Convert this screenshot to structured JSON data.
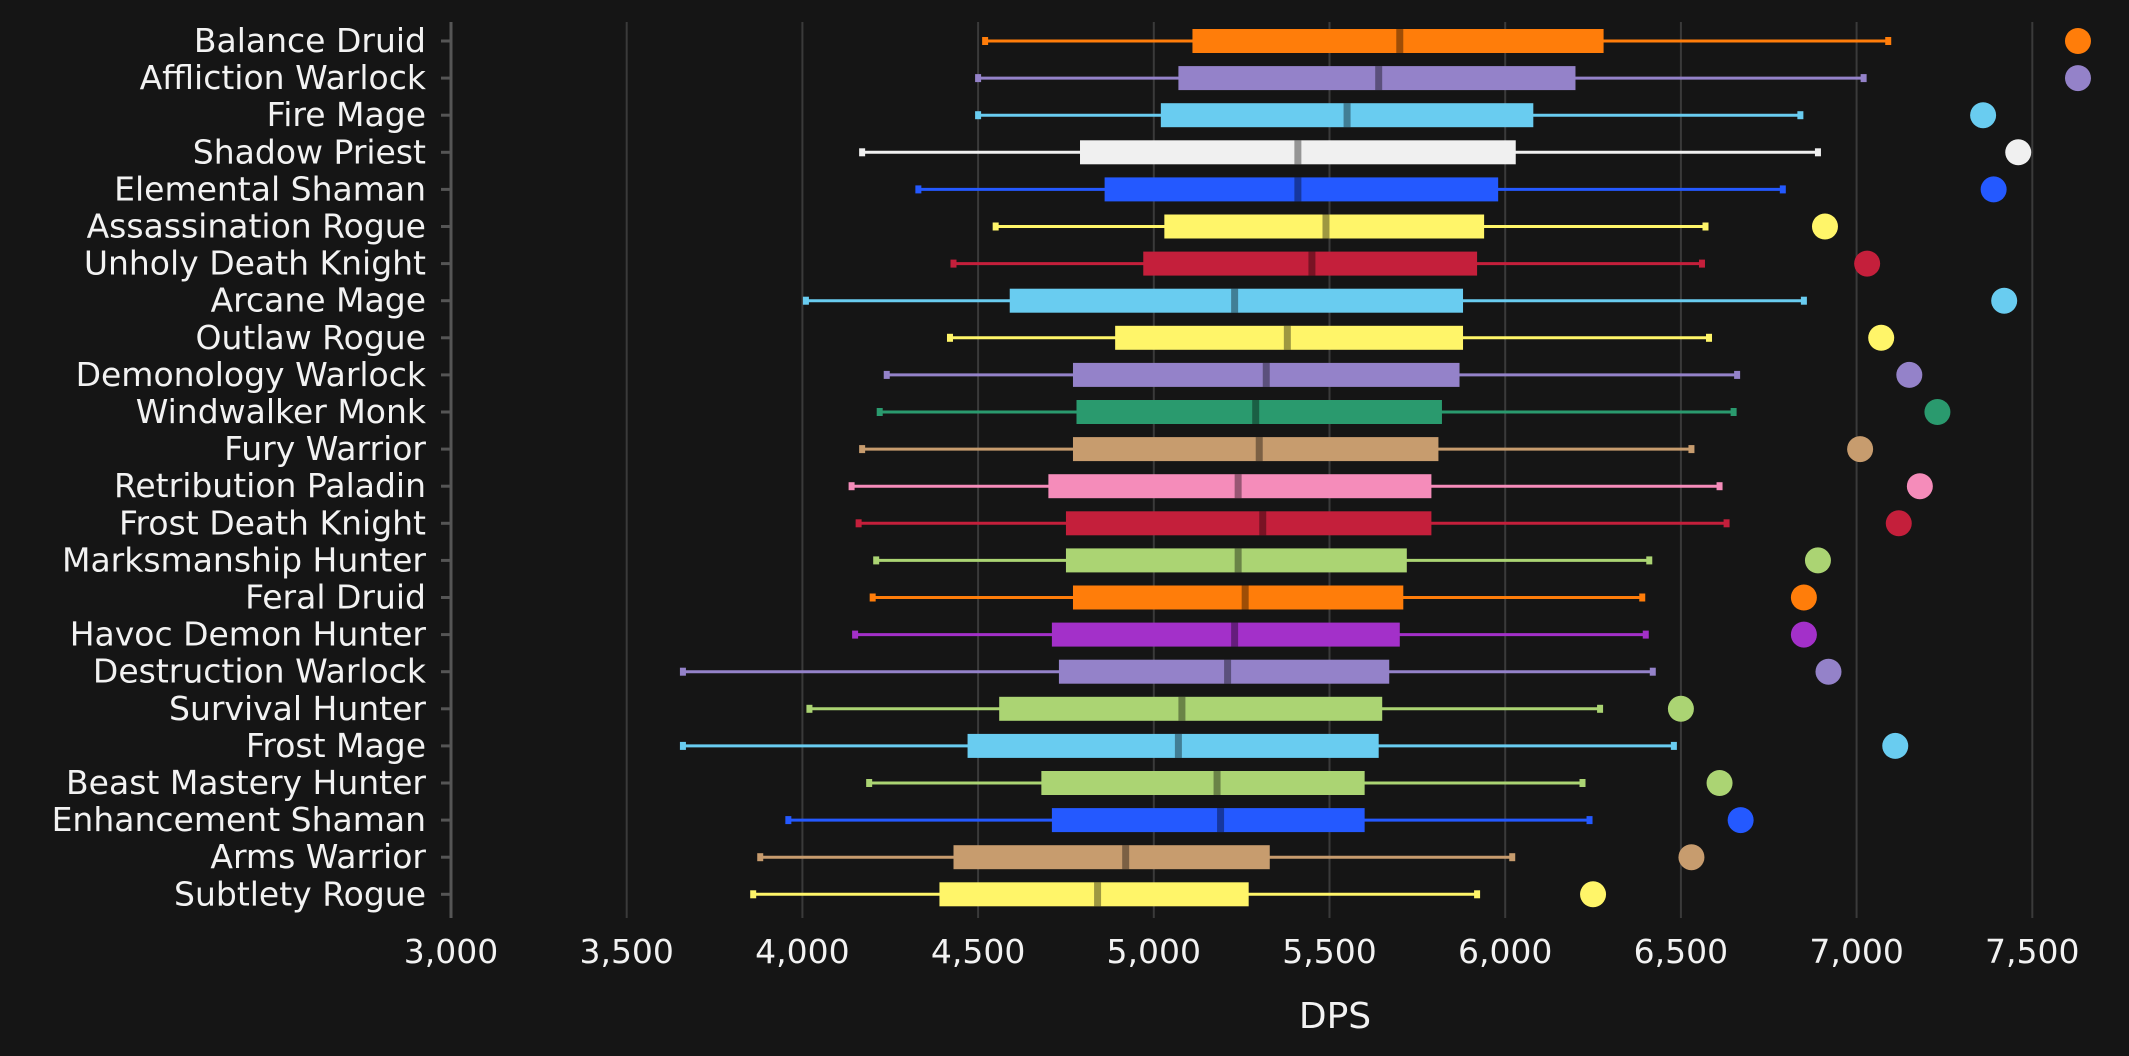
{
  "chart_data": {
    "type": "box",
    "xlabel": "DPS",
    "xlim": [
      3000,
      7600
    ],
    "xticks": [
      3000,
      3500,
      4000,
      4500,
      5000,
      5500,
      6000,
      6500,
      7000,
      7500
    ],
    "xtick_labels": [
      "3,000",
      "3,500",
      "4,000",
      "4,500",
      "5,000",
      "5,500",
      "6,000",
      "6,500",
      "7,000",
      "7,500"
    ],
    "grid": "vertical",
    "series": [
      {
        "name": "Balance Druid",
        "color": "#ff7d0a",
        "whisker_low": 4520,
        "q1": 5110,
        "median": 5700,
        "q3": 6280,
        "whisker_high": 7090,
        "max": 7630
      },
      {
        "name": "Affliction Warlock",
        "color": "#9482c9",
        "whisker_low": 4500,
        "q1": 5070,
        "median": 5640,
        "q3": 6200,
        "whisker_high": 7020,
        "max": 7630
      },
      {
        "name": "Fire Mage",
        "color": "#69ccf0",
        "whisker_low": 4500,
        "q1": 5020,
        "median": 5550,
        "q3": 6080,
        "whisker_high": 6840,
        "max": 7360
      },
      {
        "name": "Shadow Priest",
        "color": "#f0f0f0",
        "whisker_low": 4170,
        "q1": 4790,
        "median": 5410,
        "q3": 6030,
        "whisker_high": 6890,
        "max": 7460
      },
      {
        "name": "Elemental Shaman",
        "color": "#2459ff",
        "whisker_low": 4330,
        "q1": 4860,
        "median": 5410,
        "q3": 5980,
        "whisker_high": 6790,
        "max": 7390
      },
      {
        "name": "Assassination Rogue",
        "color": "#fff569",
        "whisker_low": 4550,
        "q1": 5030,
        "median": 5490,
        "q3": 5940,
        "whisker_high": 6570,
        "max": 6910
      },
      {
        "name": "Unholy Death Knight",
        "color": "#c41f3b",
        "whisker_low": 4430,
        "q1": 4970,
        "median": 5450,
        "q3": 5920,
        "whisker_high": 6560,
        "max": 7030
      },
      {
        "name": "Arcane Mage",
        "color": "#69ccf0",
        "whisker_low": 4010,
        "q1": 4590,
        "median": 5230,
        "q3": 5880,
        "whisker_high": 6850,
        "max": 7420
      },
      {
        "name": "Outlaw Rogue",
        "color": "#fff569",
        "whisker_low": 4420,
        "q1": 4890,
        "median": 5380,
        "q3": 5880,
        "whisker_high": 6580,
        "max": 7070
      },
      {
        "name": "Demonology Warlock",
        "color": "#9482c9",
        "whisker_low": 4240,
        "q1": 4770,
        "median": 5320,
        "q3": 5870,
        "whisker_high": 6660,
        "max": 7150
      },
      {
        "name": "Windwalker Monk",
        "color": "#2a9a6e",
        "whisker_low": 4220,
        "q1": 4780,
        "median": 5290,
        "q3": 5820,
        "whisker_high": 6650,
        "max": 7230
      },
      {
        "name": "Fury Warrior",
        "color": "#c79c6e",
        "whisker_low": 4170,
        "q1": 4770,
        "median": 5300,
        "q3": 5810,
        "whisker_high": 6530,
        "max": 7010
      },
      {
        "name": "Retribution Paladin",
        "color": "#f58cba",
        "whisker_low": 4140,
        "q1": 4700,
        "median": 5240,
        "q3": 5790,
        "whisker_high": 6610,
        "max": 7180
      },
      {
        "name": "Frost Death Knight",
        "color": "#c41f3b",
        "whisker_low": 4160,
        "q1": 4750,
        "median": 5310,
        "q3": 5790,
        "whisker_high": 6630,
        "max": 7120
      },
      {
        "name": "Marksmanship Hunter",
        "color": "#abd473",
        "whisker_low": 4210,
        "q1": 4750,
        "median": 5240,
        "q3": 5720,
        "whisker_high": 6410,
        "max": 6890
      },
      {
        "name": "Feral Druid",
        "color": "#ff7d0a",
        "whisker_low": 4200,
        "q1": 4770,
        "median": 5260,
        "q3": 5710,
        "whisker_high": 6390,
        "max": 6850
      },
      {
        "name": "Havoc Demon Hunter",
        "color": "#a330c9",
        "whisker_low": 4150,
        "q1": 4710,
        "median": 5230,
        "q3": 5700,
        "whisker_high": 6400,
        "max": 6850
      },
      {
        "name": "Destruction Warlock",
        "color": "#9482c9",
        "whisker_low": 3660,
        "q1": 4730,
        "median": 5210,
        "q3": 5670,
        "whisker_high": 6420,
        "max": 6920
      },
      {
        "name": "Survival Hunter",
        "color": "#abd473",
        "whisker_low": 4020,
        "q1": 4560,
        "median": 5080,
        "q3": 5650,
        "whisker_high": 6270,
        "max": 6500
      },
      {
        "name": "Frost Mage",
        "color": "#69ccf0",
        "whisker_low": 3660,
        "q1": 4470,
        "median": 5070,
        "q3": 5640,
        "whisker_high": 6480,
        "max": 7110
      },
      {
        "name": "Beast Mastery Hunter",
        "color": "#abd473",
        "whisker_low": 4190,
        "q1": 4680,
        "median": 5180,
        "q3": 5600,
        "whisker_high": 6220,
        "max": 6610
      },
      {
        "name": "Enhancement Shaman",
        "color": "#2459ff",
        "whisker_low": 3960,
        "q1": 4710,
        "median": 5190,
        "q3": 5600,
        "whisker_high": 6240,
        "max": 6670
      },
      {
        "name": "Arms Warrior",
        "color": "#c79c6e",
        "whisker_low": 3880,
        "q1": 4430,
        "median": 4920,
        "q3": 5330,
        "whisker_high": 6020,
        "max": 6530
      },
      {
        "name": "Subtlety Rogue",
        "color": "#fff569",
        "whisker_low": 3860,
        "q1": 4390,
        "median": 4840,
        "q3": 5270,
        "whisker_high": 5920,
        "max": 6250
      }
    ]
  }
}
